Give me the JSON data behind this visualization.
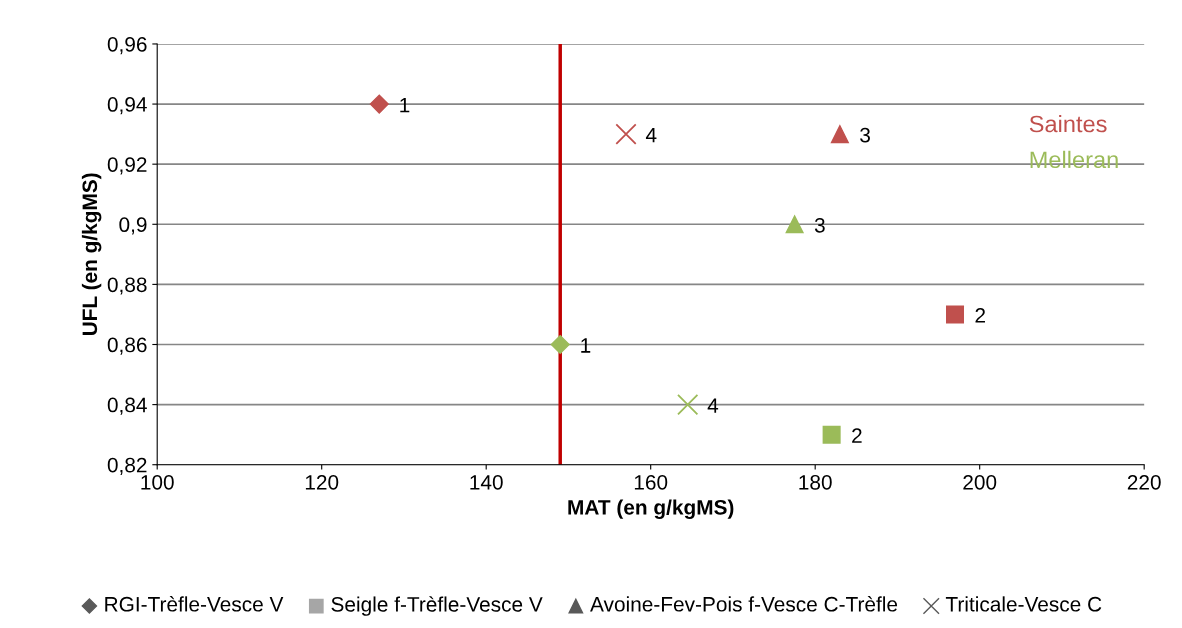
{
  "chart_data": {
    "type": "scatter",
    "xlabel": "MAT (en g/kgMS)",
    "ylabel": "UFL (en g/kgMS)",
    "xlim": [
      100,
      220
    ],
    "xticks": [
      100,
      120,
      140,
      160,
      180,
      200,
      220
    ],
    "ylim": [
      0.82,
      0.96
    ],
    "yticks": [
      {
        "value": 0.82,
        "label": "0,82"
      },
      {
        "value": 0.84,
        "label": "0,84"
      },
      {
        "value": 0.86,
        "label": "0,86"
      },
      {
        "value": 0.88,
        "label": "0,88"
      },
      {
        "value": 0.9,
        "label": "0,9"
      },
      {
        "value": 0.92,
        "label": "0,92"
      },
      {
        "value": 0.94,
        "label": "0,94"
      },
      {
        "value": 0.96,
        "label": "0,96"
      }
    ],
    "grid": "y",
    "series": [
      {
        "name": "Saintes",
        "marker": "diamond",
        "color": "#c0504d",
        "x": [
          127
        ],
        "values": [
          0.94
        ]
      },
      {
        "marker": "square",
        "color": "#c0504d",
        "x": [
          197
        ],
        "values": [
          0.87
        ]
      },
      {
        "marker": "triangle",
        "color": "#c0504d",
        "x": [
          183
        ],
        "values": [
          0.93
        ]
      },
      {
        "marker": "cross",
        "color": "#c0504d",
        "x": [
          157
        ],
        "values": [
          0.93
        ]
      },
      {
        "name": "Melleran",
        "marker": "diamond",
        "color": "#9bbb59",
        "x": [
          149
        ],
        "values": [
          0.86
        ]
      },
      {
        "marker": "square",
        "color": "#9bbb59",
        "x": [
          182
        ],
        "values": [
          0.83
        ]
      },
      {
        "marker": "triangle",
        "color": "#9bbb59",
        "x": [
          177.5
        ],
        "values": [
          0.9
        ]
      },
      {
        "marker": "cross",
        "color": "#9bbb59",
        "x": [
          164.5
        ],
        "values": [
          0.84
        ]
      }
    ],
    "ref_lines": [
      {
        "axis": "x",
        "value": 149,
        "color": "#c00000",
        "line_style": "solid"
      }
    ],
    "annotations": [
      {
        "text": "1",
        "x": 127,
        "y": 0.94
      },
      {
        "text": "2",
        "x": 197,
        "y": 0.87
      },
      {
        "text": "3",
        "x": 183,
        "y": 0.93
      },
      {
        "text": "4",
        "x": 157,
        "y": 0.93
      },
      {
        "text": "1",
        "x": 149,
        "y": 0.86
      },
      {
        "text": "2",
        "x": 182,
        "y": 0.83
      },
      {
        "text": "3",
        "x": 177.5,
        "y": 0.9
      },
      {
        "text": "4",
        "x": 164.5,
        "y": 0.84
      },
      "RGI-Trèfle-Vesce V",
      "Seigle f-Trèfle-Vesce V",
      "Avoine-Fev-Pois f-Vesce C-Trèfle",
      "Triticale-Vesce C"
    ]
  }
}
